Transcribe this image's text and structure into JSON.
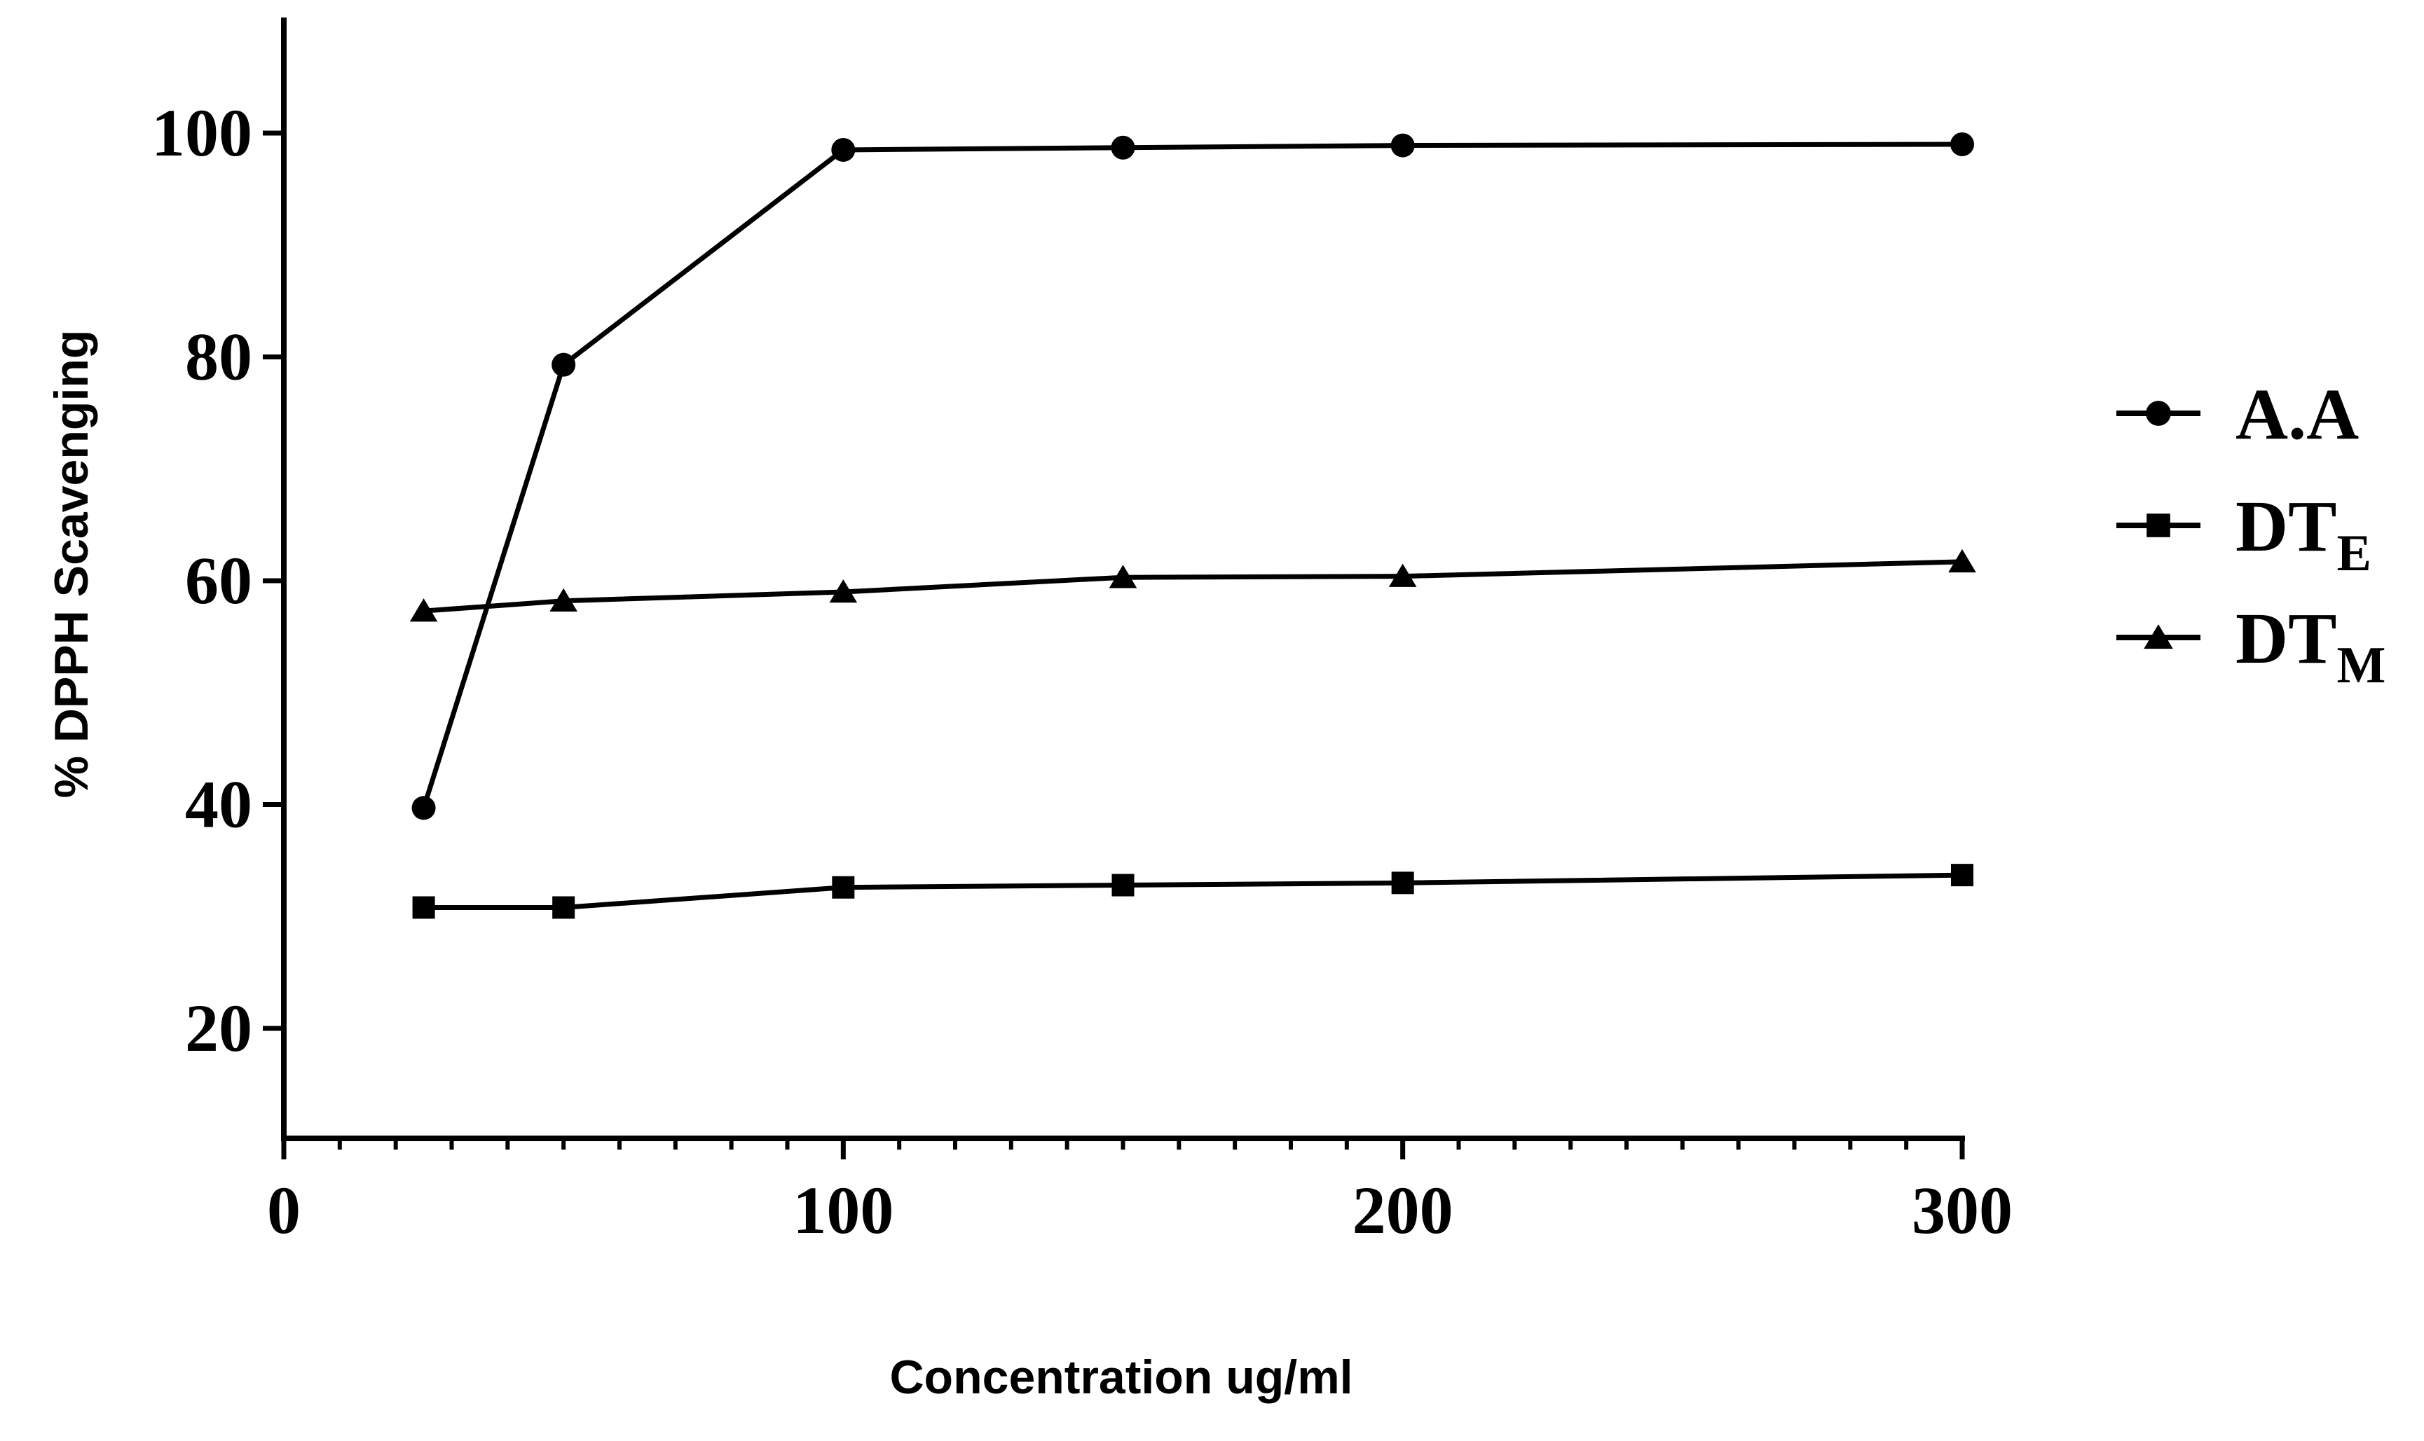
{
  "chart_data": {
    "type": "line",
    "xlabel": "Concentration ug/ml",
    "ylabel": "%  DPPH Scavenging",
    "xlim": [
      0,
      300
    ],
    "ylim": [
      10,
      110
    ],
    "x_ticks": [
      0,
      100,
      200,
      300
    ],
    "x_tick_labels": [
      "0",
      "100",
      "200",
      "300"
    ],
    "y_ticks": [
      20,
      40,
      60,
      80,
      100
    ],
    "y_tick_labels": [
      "20",
      "40",
      "60",
      "80",
      "100"
    ],
    "x_minor_tick_step": 10,
    "grid": false,
    "legend_position": "right",
    "x": [
      25,
      50,
      100,
      150,
      200,
      300
    ],
    "series": [
      {
        "name": "A.A",
        "name_main": "A.A",
        "name_sub": "",
        "marker": "circle",
        "values": [
          39.7,
          79.3,
          98.5,
          98.7,
          98.9,
          99.0
        ]
      },
      {
        "name": "DTE",
        "name_main": "DT",
        "name_sub": "E",
        "marker": "square",
        "values": [
          30.8,
          30.8,
          32.6,
          32.8,
          33.0,
          33.7
        ]
      },
      {
        "name": "DTM",
        "name_main": "DT",
        "name_sub": "M",
        "marker": "triangle",
        "values": [
          57.3,
          58.2,
          59.0,
          60.3,
          60.4,
          61.7
        ]
      }
    ],
    "colors": {
      "line": "#000000",
      "background": "#ffffff"
    }
  }
}
